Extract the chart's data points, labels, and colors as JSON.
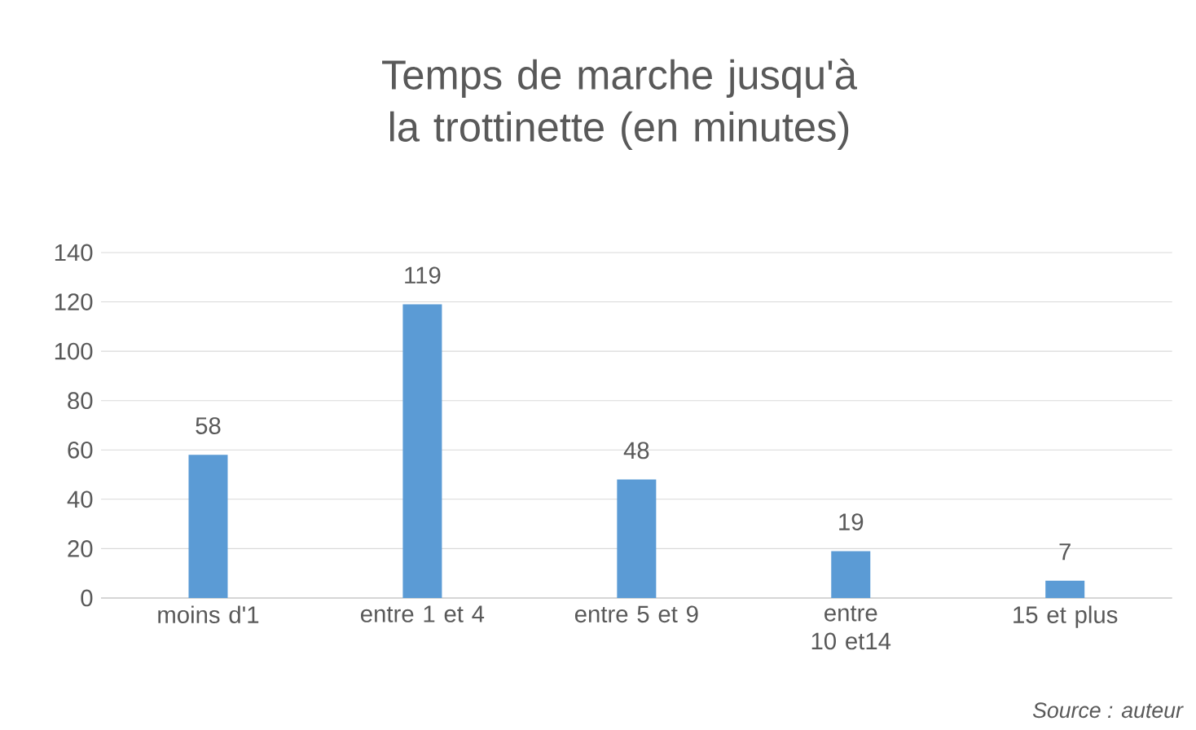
{
  "chart_data": {
    "type": "bar",
    "title": "Temps de marche jusqu'à la trottinette (en minutes)",
    "categories": [
      "moins d'1",
      "entre 1 et 4",
      "entre 5 et 9",
      "entre 10 et14",
      "15 et plus"
    ],
    "values": [
      58,
      119,
      48,
      19,
      7
    ],
    "color": "#5b9bd5",
    "ylim": [
      0,
      140
    ],
    "yticks": [
      0,
      20,
      40,
      60,
      80,
      100,
      120,
      140
    ],
    "grid": "y",
    "data_labels": true,
    "annotations": [
      "Source : auteur"
    ]
  }
}
